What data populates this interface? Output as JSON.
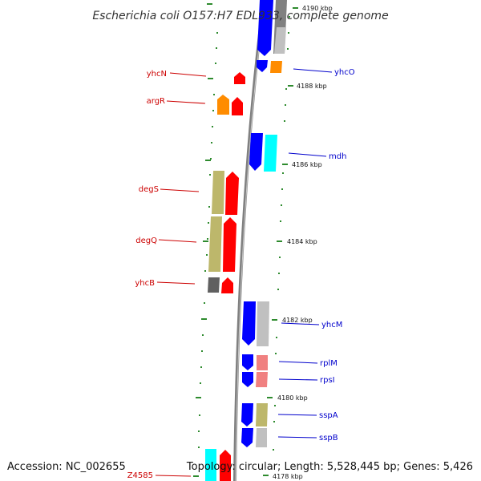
{
  "title": "Escherichia coli O157:H7 EDL933, complete genome",
  "footer": {
    "accession": "Accession: NC_002655",
    "summary": "Topology: circular; Length: 5,528,445 bp; Genes: 5,426"
  },
  "colors": {
    "backbone": "#808080",
    "tick": "#2e8b2e",
    "left_label": "#cc0000",
    "right_label": "#0000cc",
    "red": "#ff0000",
    "blue": "#0000ff",
    "orange": "#ff8c00",
    "khaki": "#bdb76b",
    "cyan": "#00ffff",
    "gray": "#808080",
    "darkgray": "#606060",
    "lightgray": "#c0c0c0",
    "pink": "#f08080"
  },
  "ticks": [
    "4190 kbp",
    "4188 kbp",
    "4186 kbp",
    "4184 kbp",
    "4182 kbp",
    "4180 kbp",
    "4178 kbp"
  ],
  "left_labels": [
    "yhcN",
    "argR",
    "degS",
    "degQ",
    "yhcB",
    "Z4585"
  ],
  "right_labels": [
    "yhcO",
    "mdh",
    "yhcM",
    "rplM",
    "rpsI",
    "sspA",
    "sspB"
  ]
}
